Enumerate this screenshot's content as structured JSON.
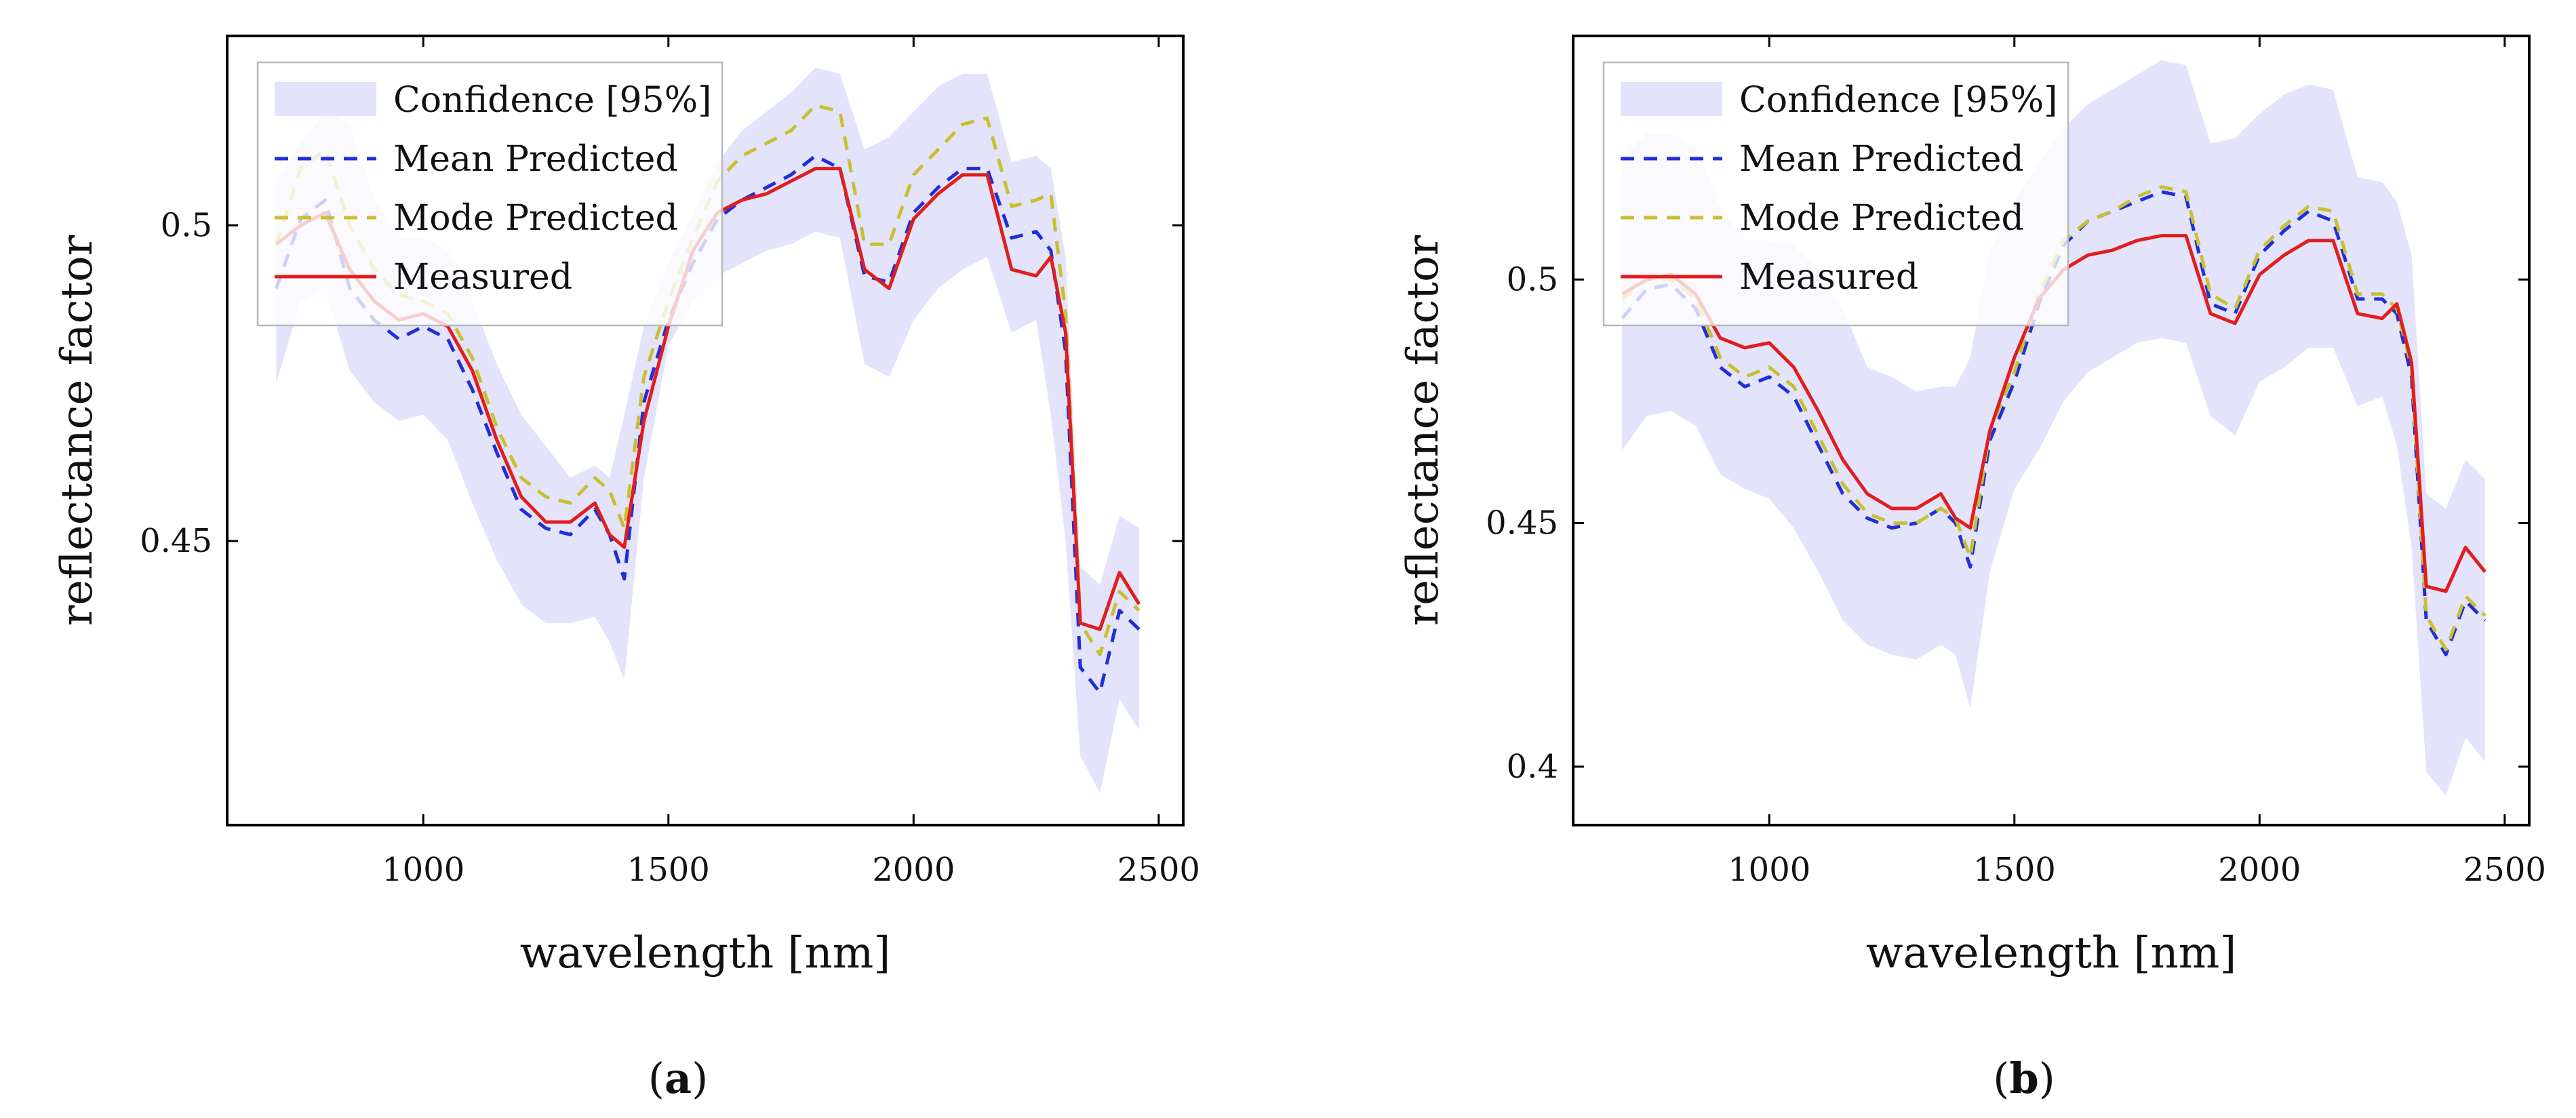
{
  "charts": [
    {
      "id": "a",
      "caption": {
        "open": "(",
        "letter": "a",
        "close": ")"
      },
      "chart_data": {
        "type": "line",
        "title": "",
        "xlabel": "wavelength [nm]",
        "ylabel": "reflectance factor",
        "xlim": [
          600,
          2550
        ],
        "ylim": [
          0.405,
          0.53
        ],
        "xticks": [
          1000,
          1500,
          2000,
          2500
        ],
        "xtick_labels": [
          "1000",
          "1500",
          "2000",
          "2500"
        ],
        "yticks": [
          0.45,
          0.5
        ],
        "ytick_labels": [
          "0.45",
          "0.5"
        ],
        "grid": false,
        "legend_position": "top-left",
        "x": [
          700,
          750,
          800,
          850,
          900,
          950,
          1000,
          1050,
          1100,
          1150,
          1200,
          1250,
          1300,
          1350,
          1380,
          1410,
          1450,
          1500,
          1550,
          1600,
          1650,
          1700,
          1750,
          1800,
          1850,
          1900,
          1950,
          2000,
          2050,
          2100,
          2150,
          2200,
          2250,
          2280,
          2310,
          2340,
          2380,
          2420,
          2460
        ],
        "series": [
          {
            "name": "Confidence [95%]",
            "kind": "band",
            "color": "#e3e3fb",
            "lower": [
              0.475,
              0.488,
              0.49,
              0.477,
              0.472,
              0.469,
              0.47,
              0.466,
              0.456,
              0.447,
              0.44,
              0.437,
              0.437,
              0.438,
              0.434,
              0.428,
              0.46,
              0.481,
              0.488,
              0.492,
              0.494,
              0.496,
              0.497,
              0.499,
              0.498,
              0.478,
              0.476,
              0.485,
              0.49,
              0.493,
              0.495,
              0.483,
              0.485,
              0.47,
              0.45,
              0.416,
              0.41,
              0.425,
              0.42
            ],
            "upper": [
              0.507,
              0.513,
              0.518,
              0.516,
              0.504,
              0.498,
              0.498,
              0.496,
              0.488,
              0.478,
              0.47,
              0.465,
              0.46,
              0.462,
              0.46,
              0.47,
              0.484,
              0.494,
              0.502,
              0.51,
              0.515,
              0.518,
              0.521,
              0.525,
              0.524,
              0.512,
              0.514,
              0.518,
              0.522,
              0.524,
              0.524,
              0.51,
              0.511,
              0.509,
              0.495,
              0.446,
              0.443,
              0.454,
              0.452
            ]
          },
          {
            "name": "Mean Predicted",
            "kind": "line",
            "style": "dashed",
            "color": "#1f2fd8",
            "values": [
              0.49,
              0.501,
              0.504,
              0.49,
              0.485,
              0.482,
              0.484,
              0.482,
              0.474,
              0.464,
              0.455,
              0.452,
              0.451,
              0.455,
              0.451,
              0.444,
              0.472,
              0.485,
              0.494,
              0.501,
              0.504,
              0.506,
              0.508,
              0.511,
              0.509,
              0.492,
              0.491,
              0.502,
              0.506,
              0.509,
              0.509,
              0.498,
              0.499,
              0.496,
              0.48,
              0.43,
              0.426,
              0.439,
              0.436
            ]
          },
          {
            "name": "Mode Predicted",
            "kind": "line",
            "style": "dashed",
            "color": "#c8c030",
            "values": [
              0.497,
              0.509,
              0.512,
              0.5,
              0.493,
              0.489,
              0.488,
              0.486,
              0.479,
              0.468,
              0.46,
              0.457,
              0.456,
              0.46,
              0.458,
              0.452,
              0.476,
              0.488,
              0.498,
              0.507,
              0.511,
              0.513,
              0.515,
              0.519,
              0.518,
              0.497,
              0.497,
              0.508,
              0.512,
              0.516,
              0.517,
              0.503,
              0.504,
              0.505,
              0.486,
              0.437,
              0.432,
              0.442,
              0.439
            ]
          },
          {
            "name": "Measured",
            "kind": "line",
            "style": "solid",
            "color": "#e01e1e",
            "values": [
              0.497,
              0.5,
              0.502,
              0.493,
              0.488,
              0.485,
              0.486,
              0.484,
              0.477,
              0.466,
              0.457,
              0.453,
              0.453,
              0.456,
              0.451,
              0.449,
              0.469,
              0.484,
              0.496,
              0.502,
              0.504,
              0.505,
              0.507,
              0.509,
              0.509,
              0.493,
              0.49,
              0.501,
              0.505,
              0.508,
              0.508,
              0.493,
              0.492,
              0.495,
              0.483,
              0.437,
              0.436,
              0.445,
              0.44
            ]
          }
        ]
      }
    },
    {
      "id": "b",
      "caption": {
        "open": "(",
        "letter": "b",
        "close": ")"
      },
      "chart_data": {
        "type": "line",
        "title": "",
        "xlabel": "wavelength [nm]",
        "ylabel": "reflectance factor",
        "xlim": [
          600,
          2550
        ],
        "ylim": [
          0.388,
          0.55
        ],
        "xticks": [
          1000,
          1500,
          2000,
          2500
        ],
        "xtick_labels": [
          "1000",
          "1500",
          "2000",
          "2500"
        ],
        "yticks": [
          0.4,
          0.45,
          0.5
        ],
        "ytick_labels": [
          "0.4",
          "0.45",
          "0.5"
        ],
        "grid": false,
        "legend_position": "top-left",
        "x": [
          700,
          750,
          800,
          850,
          900,
          950,
          1000,
          1050,
          1100,
          1150,
          1200,
          1250,
          1300,
          1350,
          1380,
          1410,
          1450,
          1500,
          1550,
          1600,
          1650,
          1700,
          1750,
          1800,
          1850,
          1900,
          1950,
          2000,
          2050,
          2100,
          2150,
          2200,
          2250,
          2280,
          2310,
          2340,
          2380,
          2420,
          2460
        ],
        "series": [
          {
            "name": "Confidence [95%]",
            "kind": "band",
            "color": "#e3e3fb",
            "lower": [
              0.465,
              0.472,
              0.473,
              0.47,
              0.46,
              0.457,
              0.455,
              0.449,
              0.44,
              0.43,
              0.425,
              0.423,
              0.422,
              0.425,
              0.423,
              0.412,
              0.44,
              0.457,
              0.465,
              0.475,
              0.481,
              0.484,
              0.487,
              0.488,
              0.487,
              0.472,
              0.468,
              0.479,
              0.482,
              0.486,
              0.486,
              0.474,
              0.476,
              0.466,
              0.445,
              0.399,
              0.394,
              0.406,
              0.401
            ],
            "upper": [
              0.525,
              0.53,
              0.53,
              0.527,
              0.515,
              0.508,
              0.508,
              0.507,
              0.502,
              0.494,
              0.482,
              0.48,
              0.477,
              0.478,
              0.478,
              0.484,
              0.506,
              0.516,
              0.524,
              0.531,
              0.536,
              0.539,
              0.542,
              0.545,
              0.544,
              0.528,
              0.529,
              0.534,
              0.538,
              0.54,
              0.539,
              0.521,
              0.52,
              0.516,
              0.505,
              0.456,
              0.453,
              0.463,
              0.459
            ]
          },
          {
            "name": "Mean Predicted",
            "kind": "line",
            "style": "dashed",
            "color": "#1f2fd8",
            "values": [
              0.492,
              0.498,
              0.499,
              0.494,
              0.482,
              0.478,
              0.48,
              0.476,
              0.466,
              0.456,
              0.451,
              0.449,
              0.45,
              0.453,
              0.45,
              0.441,
              0.467,
              0.479,
              0.495,
              0.507,
              0.512,
              0.514,
              0.516,
              0.518,
              0.517,
              0.495,
              0.493,
              0.505,
              0.51,
              0.514,
              0.512,
              0.496,
              0.496,
              0.493,
              0.48,
              0.43,
              0.423,
              0.434,
              0.43
            ]
          },
          {
            "name": "Mode Predicted",
            "kind": "line",
            "style": "dashed",
            "color": "#c8c030",
            "values": [
              0.496,
              0.5,
              0.5,
              0.496,
              0.484,
              0.48,
              0.482,
              0.478,
              0.468,
              0.458,
              0.452,
              0.45,
              0.45,
              0.453,
              0.451,
              0.443,
              0.469,
              0.481,
              0.497,
              0.508,
              0.512,
              0.514,
              0.517,
              0.519,
              0.518,
              0.497,
              0.494,
              0.506,
              0.511,
              0.515,
              0.514,
              0.497,
              0.497,
              0.494,
              0.482,
              0.431,
              0.424,
              0.435,
              0.431
            ]
          },
          {
            "name": "Measured",
            "kind": "line",
            "style": "solid",
            "color": "#e01e1e",
            "values": [
              0.497,
              0.5,
              0.501,
              0.497,
              0.488,
              0.486,
              0.487,
              0.482,
              0.473,
              0.463,
              0.456,
              0.453,
              0.453,
              0.456,
              0.451,
              0.449,
              0.469,
              0.484,
              0.496,
              0.502,
              0.505,
              0.506,
              0.508,
              0.509,
              0.509,
              0.493,
              0.491,
              0.501,
              0.505,
              0.508,
              0.508,
              0.493,
              0.492,
              0.495,
              0.483,
              0.437,
              0.436,
              0.445,
              0.44
            ]
          }
        ]
      }
    }
  ]
}
